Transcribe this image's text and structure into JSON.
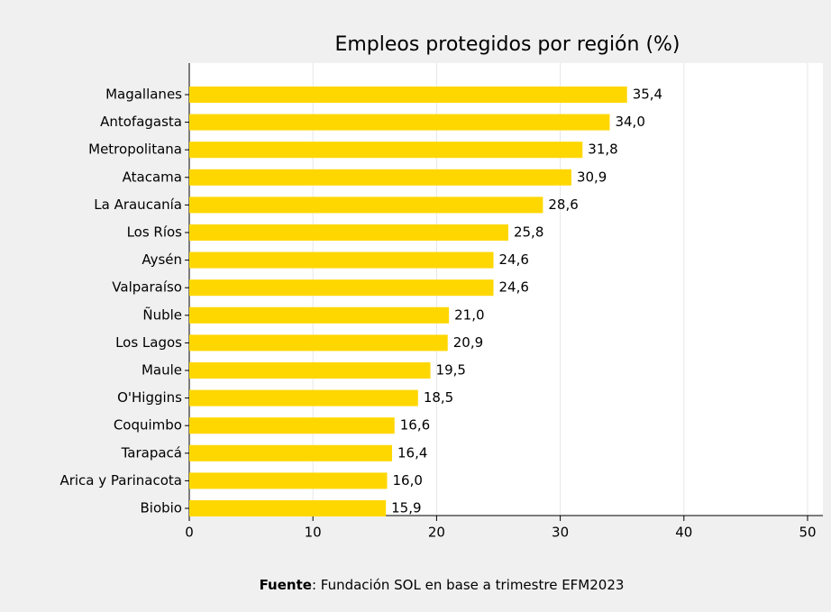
{
  "chart_data": {
    "type": "bar",
    "orientation": "horizontal",
    "title": "Empleos protegidos por región (%)",
    "categories": [
      "Magallanes",
      "Antofagasta",
      "Metropolitana",
      "Atacama",
      "La Araucanía",
      "Los Ríos",
      "Aysén",
      "Valparaíso",
      "Ñuble",
      "Los Lagos",
      "Maule",
      "O'Higgins",
      "Coquimbo",
      "Tarapacá",
      "Arica y Parinacota",
      "Biobio"
    ],
    "values": [
      35.4,
      34.0,
      31.8,
      30.9,
      28.6,
      25.8,
      24.6,
      24.6,
      21.0,
      20.9,
      19.5,
      18.5,
      16.6,
      16.4,
      16.0,
      15.9
    ],
    "value_labels": [
      "35,4",
      "34,0",
      "31,8",
      "30,9",
      "28,6",
      "25,8",
      "24,6",
      "24,6",
      "21,0",
      "20,9",
      "19,5",
      "18,5",
      "16,6",
      "16,4",
      "16,0",
      "15,9"
    ],
    "color": "#ffd700",
    "xlim": [
      0,
      50
    ],
    "xticks": [
      0,
      10,
      20,
      30,
      40,
      50
    ],
    "grid": true,
    "source_label": "Fuente",
    "source": ": Fundación SOL en base a trimestre EFM2023"
  }
}
